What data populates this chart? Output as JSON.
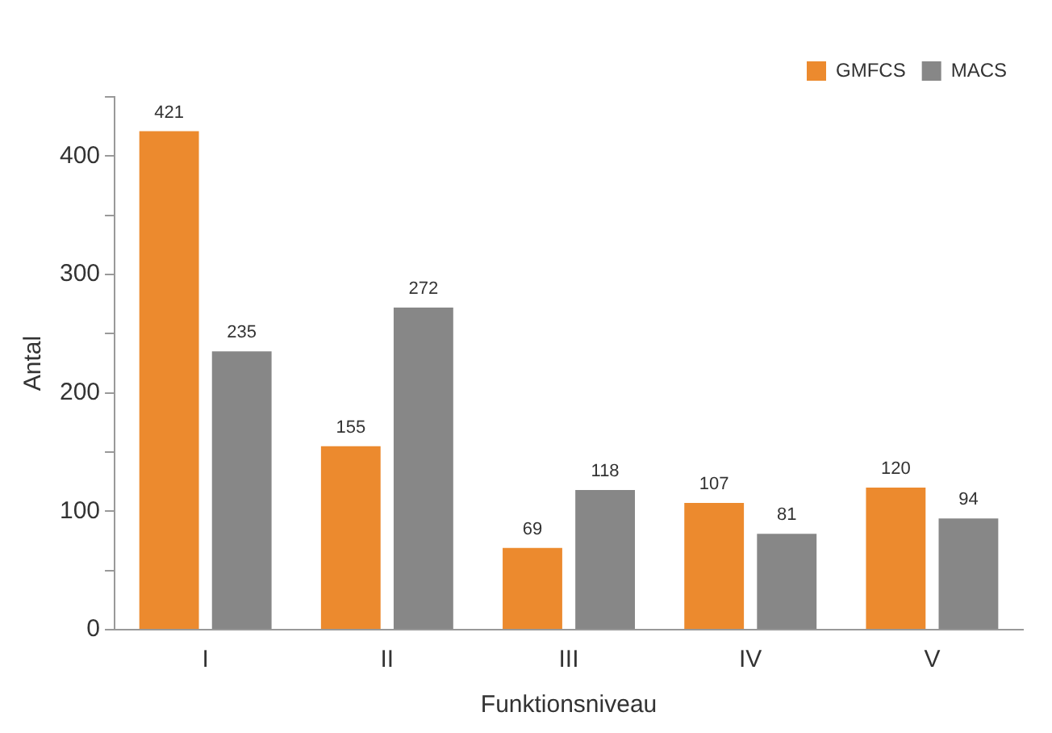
{
  "chart_data": {
    "type": "bar",
    "xlabel": "Funktionsniveau",
    "ylabel": "Antal",
    "categories": [
      "I",
      "II",
      "III",
      "IV",
      "V"
    ],
    "series": [
      {
        "name": "GMFCS",
        "color": "#ec8a2e",
        "values": [
          421,
          155,
          69,
          107,
          120
        ]
      },
      {
        "name": "MACS",
        "color": "#878787",
        "values": [
          235,
          272,
          118,
          81,
          94
        ]
      }
    ],
    "ylim": [
      0,
      450
    ],
    "yticks": [
      0,
      {
        "value": 50,
        "label": null
      },
      100,
      {
        "value": 150,
        "label": null
      },
      200,
      {
        "value": 250,
        "label": null
      },
      300,
      {
        "value": 350,
        "label": null
      },
      400,
      {
        "value": 450,
        "label": null
      }
    ],
    "grid": false,
    "legend": "top right",
    "data_labels": true
  }
}
